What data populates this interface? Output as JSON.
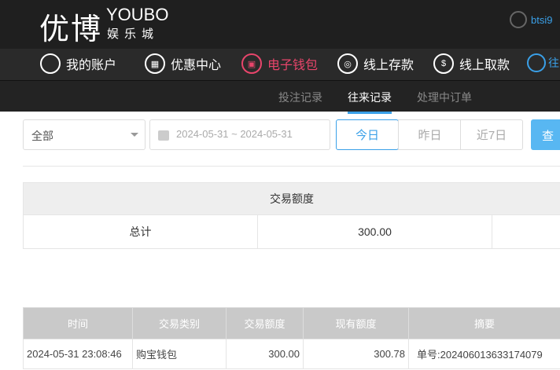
{
  "header": {
    "logo_cn": "优博",
    "logo_en": "YOUBO",
    "logo_sub": "娱乐城",
    "username": "btsi9"
  },
  "nav": [
    {
      "label": "我的账户",
      "icon": "user-icon"
    },
    {
      "label": "优惠中心",
      "icon": "gift-icon"
    },
    {
      "label": "电子钱包",
      "icon": "wallet-icon",
      "active": true
    },
    {
      "label": "线上存款",
      "icon": "deposit-icon"
    },
    {
      "label": "线上取款",
      "icon": "withdraw-icon"
    },
    {
      "label": "往",
      "icon": "record-icon"
    }
  ],
  "subnav": [
    {
      "label": "投注记录"
    },
    {
      "label": "往来记录",
      "active": true
    },
    {
      "label": "处理中订单"
    }
  ],
  "filter": {
    "type": "全部",
    "date_range": "2024-05-31 ~ 2024-05-31",
    "quick": [
      "今日",
      "昨日",
      "近7日"
    ],
    "search": "查"
  },
  "summary": {
    "header": "交易额度",
    "row_label": "总计",
    "value": "300.00"
  },
  "table": {
    "columns": [
      "时间",
      "交易类别",
      "交易额度",
      "现有额度",
      "摘要"
    ],
    "rows": [
      [
        "2024-05-31 23:08:46",
        "购宝钱包",
        "300.00",
        "300.78",
        "单号:202406013633174079"
      ]
    ]
  },
  "colors": {
    "accent": "#3aa0e8",
    "active_nav": "#e8456b"
  }
}
